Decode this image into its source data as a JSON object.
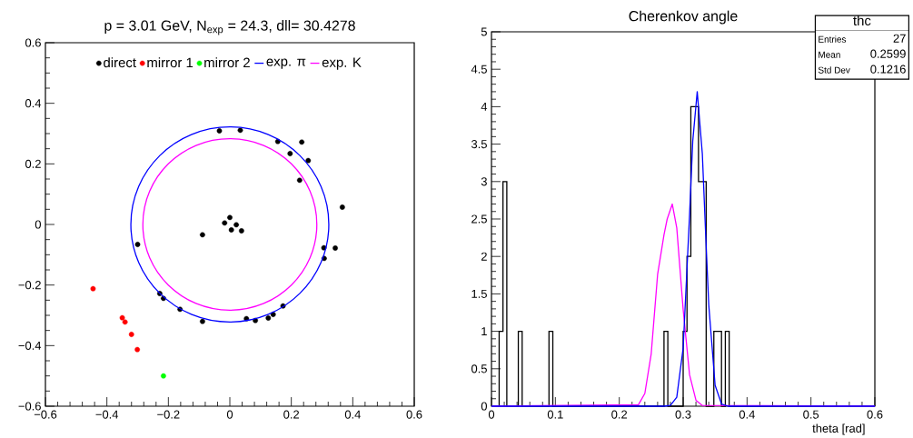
{
  "chart_data": [
    {
      "type": "scatter",
      "title": "p = 3.01 GeV, N$_{exp}$ = 24.3, dll= 30.4278",
      "marker": "circle",
      "legend": "top",
      "xlim": [
        -0.6,
        0.6
      ],
      "ylim": [
        -0.6,
        0.6
      ],
      "xticks": [
        {
          "value": -0.6,
          "label": "−0.6"
        },
        {
          "value": -0.4,
          "label": "−0.4"
        },
        {
          "value": -0.2,
          "label": "−0.2"
        },
        0,
        0.2,
        0.4,
        0.6
      ],
      "yticks": [
        {
          "value": -0.6,
          "label": "−0.6"
        },
        {
          "value": -0.4,
          "label": "−0.4"
        },
        {
          "value": -0.2,
          "label": "−0.2"
        },
        0,
        0.2,
        0.4,
        0.6
      ],
      "series": [
        {
          "name": "direct",
          "color": "#000000",
          "x": [
            -0.034,
            0.034,
            0.156,
            0.234,
            0.196,
            0.255,
            0.227,
            0.366,
            0.0,
            -0.017,
            0.021,
            0.005,
            0.038,
            -0.089,
            -0.3,
            0.306,
            0.343,
            0.307,
            -0.228,
            -0.216,
            -0.162,
            0.173,
            -0.089,
            0.054,
            0.083,
            0.125,
            0.141
          ],
          "values": [
            0.309,
            0.311,
            0.274,
            0.272,
            0.234,
            0.211,
            0.146,
            0.057,
            0.023,
            0.005,
            -0.001,
            -0.018,
            -0.021,
            -0.034,
            -0.066,
            -0.077,
            -0.078,
            -0.112,
            -0.228,
            -0.244,
            -0.28,
            -0.269,
            -0.32,
            -0.311,
            -0.317,
            -0.309,
            -0.297
          ]
        },
        {
          "name": "mirror 1",
          "color": "#ff0000",
          "x": [
            -0.445,
            -0.35,
            -0.341,
            -0.32,
            -0.301
          ],
          "values": [
            -0.212,
            -0.308,
            -0.322,
            -0.363,
            -0.413
          ]
        },
        {
          "name": "mirror 2",
          "color": "#00ff00",
          "x": [
            -0.216
          ],
          "values": [
            -0.5
          ]
        }
      ],
      "annotations": [
        "exp. π",
        "exp. K"
      ]
    },
    {
      "type": "histogram",
      "title": "Cherenkov angle",
      "xlabel": "theta [rad]",
      "color": "#000000",
      "xlim": [
        0,
        0.6
      ],
      "ylim": [
        0,
        5
      ],
      "xticks": [
        0,
        0.1,
        0.2,
        0.3,
        0.4,
        0.5,
        0.6
      ],
      "yticks": [
        0,
        0.5,
        1,
        1.5,
        2,
        2.5,
        3,
        3.5,
        4,
        4.5,
        5
      ],
      "annotations": [
        "thc",
        "Entries",
        "27",
        "Mean",
        "0.2599",
        "Std Dev",
        "0.1216"
      ],
      "bins": [
        0,
        0.006,
        0.012,
        0.018,
        0.024,
        0.03,
        0.036,
        0.042,
        0.048,
        0.054,
        0.06,
        0.066,
        0.072,
        0.078,
        0.084,
        0.09,
        0.096,
        0.102,
        0.108,
        0.114,
        0.12,
        0.126,
        0.132,
        0.138,
        0.144,
        0.15,
        0.156,
        0.162,
        0.168,
        0.174,
        0.18,
        0.186,
        0.192,
        0.198,
        0.204,
        0.21,
        0.216,
        0.222,
        0.228,
        0.234,
        0.24,
        0.246,
        0.252,
        0.258,
        0.264,
        0.27,
        0.276,
        0.282,
        0.288,
        0.294,
        0.3,
        0.306,
        0.312,
        0.318,
        0.324,
        0.33,
        0.336,
        0.342,
        0.348,
        0.354,
        0.36,
        0.366,
        0.372,
        0.378,
        0.384,
        0.39,
        0.396,
        0.402,
        0.408,
        0.414,
        0.42,
        0.426,
        0.432,
        0.438,
        0.444,
        0.45,
        0.456,
        0.462,
        0.468,
        0.474,
        0.48,
        0.486,
        0.492,
        0.498,
        0.504,
        0.51,
        0.516,
        0.522,
        0.528,
        0.534,
        0.54,
        0.546,
        0.552,
        0.558,
        0.564,
        0.57,
        0.576,
        0.582,
        0.588,
        0.594,
        0.6
      ],
      "values": [
        0,
        0,
        1,
        3,
        0,
        0,
        0,
        1,
        0,
        0,
        0,
        0,
        0,
        0,
        0,
        1,
        0,
        0,
        0,
        0,
        0,
        0,
        0,
        0,
        0,
        0,
        0,
        0,
        0,
        0,
        0,
        0,
        0,
        0,
        0,
        0,
        0,
        0,
        0,
        0,
        0,
        0,
        0,
        0,
        0,
        1,
        0,
        0,
        0,
        0,
        1,
        2,
        4,
        4,
        3,
        3,
        0,
        0,
        1,
        1,
        0,
        1,
        0,
        0,
        0,
        0,
        0,
        0,
        0,
        0,
        0,
        0,
        0,
        0,
        0,
        0,
        0,
        0,
        0,
        0,
        0,
        0,
        0,
        0,
        0,
        0,
        0,
        0,
        0,
        0,
        0,
        0,
        0,
        0,
        0,
        0,
        0,
        0,
        0,
        0
      ],
      "series": [
        {
          "type": "line",
          "color": "#ff00ff",
          "x": [
            0,
            0.23,
            0.24,
            0.25,
            0.26,
            0.27,
            0.275,
            0.283,
            0.29,
            0.3,
            0.31,
            0.32,
            0.33,
            0.6
          ],
          "values": [
            0,
            0.02,
            0.17,
            0.7,
            1.76,
            2.29,
            2.5,
            2.7,
            2.38,
            1.29,
            0.42,
            0.08,
            0.01,
            0
          ]
        },
        {
          "type": "line",
          "color": "#0000ff",
          "x": [
            0,
            0.27,
            0.28,
            0.29,
            0.3,
            0.31,
            0.315,
            0.322,
            0.33,
            0.335,
            0.34,
            0.35,
            0.36,
            0.37,
            0.6
          ],
          "values": [
            0,
            0,
            0.01,
            0.12,
            0.78,
            2.55,
            3.54,
            4.2,
            3.37,
            2.34,
            1.36,
            0.28,
            0.03,
            0,
            0
          ]
        }
      ]
    }
  ]
}
